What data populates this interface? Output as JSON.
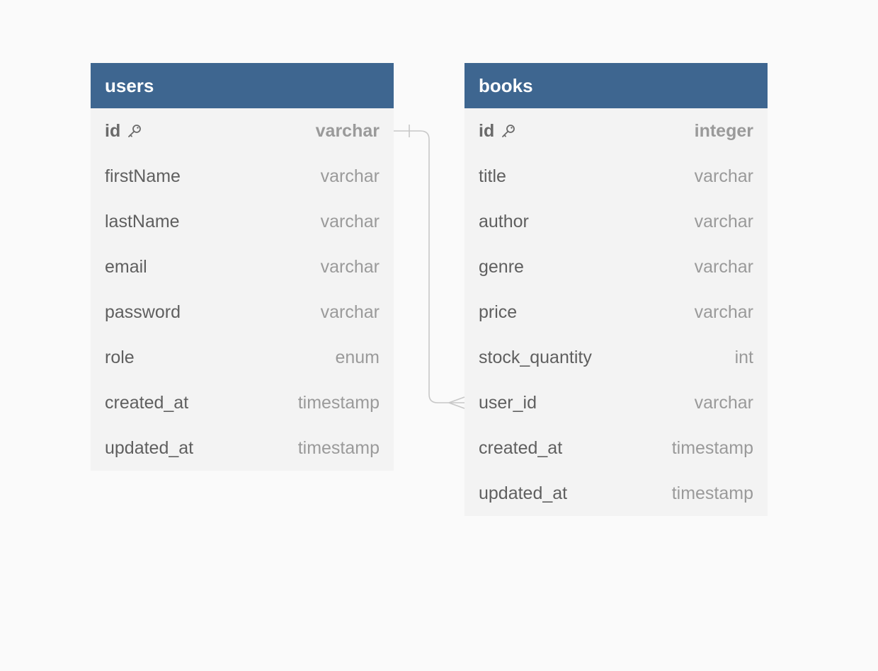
{
  "diagram": {
    "tables": [
      {
        "name": "users",
        "fields": [
          {
            "name": "id",
            "type": "varchar",
            "primary_key": true
          },
          {
            "name": "firstName",
            "type": "varchar"
          },
          {
            "name": "lastName",
            "type": "varchar"
          },
          {
            "name": "email",
            "type": "varchar"
          },
          {
            "name": "password",
            "type": "varchar"
          },
          {
            "name": "role",
            "type": "enum"
          },
          {
            "name": "created_at",
            "type": "timestamp"
          },
          {
            "name": "updated_at",
            "type": "timestamp"
          }
        ]
      },
      {
        "name": "books",
        "fields": [
          {
            "name": "id",
            "type": "integer",
            "primary_key": true
          },
          {
            "name": "title",
            "type": "varchar"
          },
          {
            "name": "author",
            "type": "varchar"
          },
          {
            "name": "genre",
            "type": "varchar"
          },
          {
            "name": "price",
            "type": "varchar"
          },
          {
            "name": "stock_quantity",
            "type": "int"
          },
          {
            "name": "user_id",
            "type": "varchar"
          },
          {
            "name": "created_at",
            "type": "timestamp"
          },
          {
            "name": "updated_at",
            "type": "timestamp"
          }
        ]
      }
    ],
    "relationships": [
      {
        "from": "users.id",
        "to": "books.user_id",
        "from_cardinality": "one",
        "to_cardinality": "many"
      }
    ],
    "colors": {
      "header": "#3e6690",
      "table_body": "#f3f3f3",
      "background": "#fafafa",
      "connector": "#c8c8c8"
    },
    "icons": {
      "primary_key": "key-icon"
    }
  }
}
